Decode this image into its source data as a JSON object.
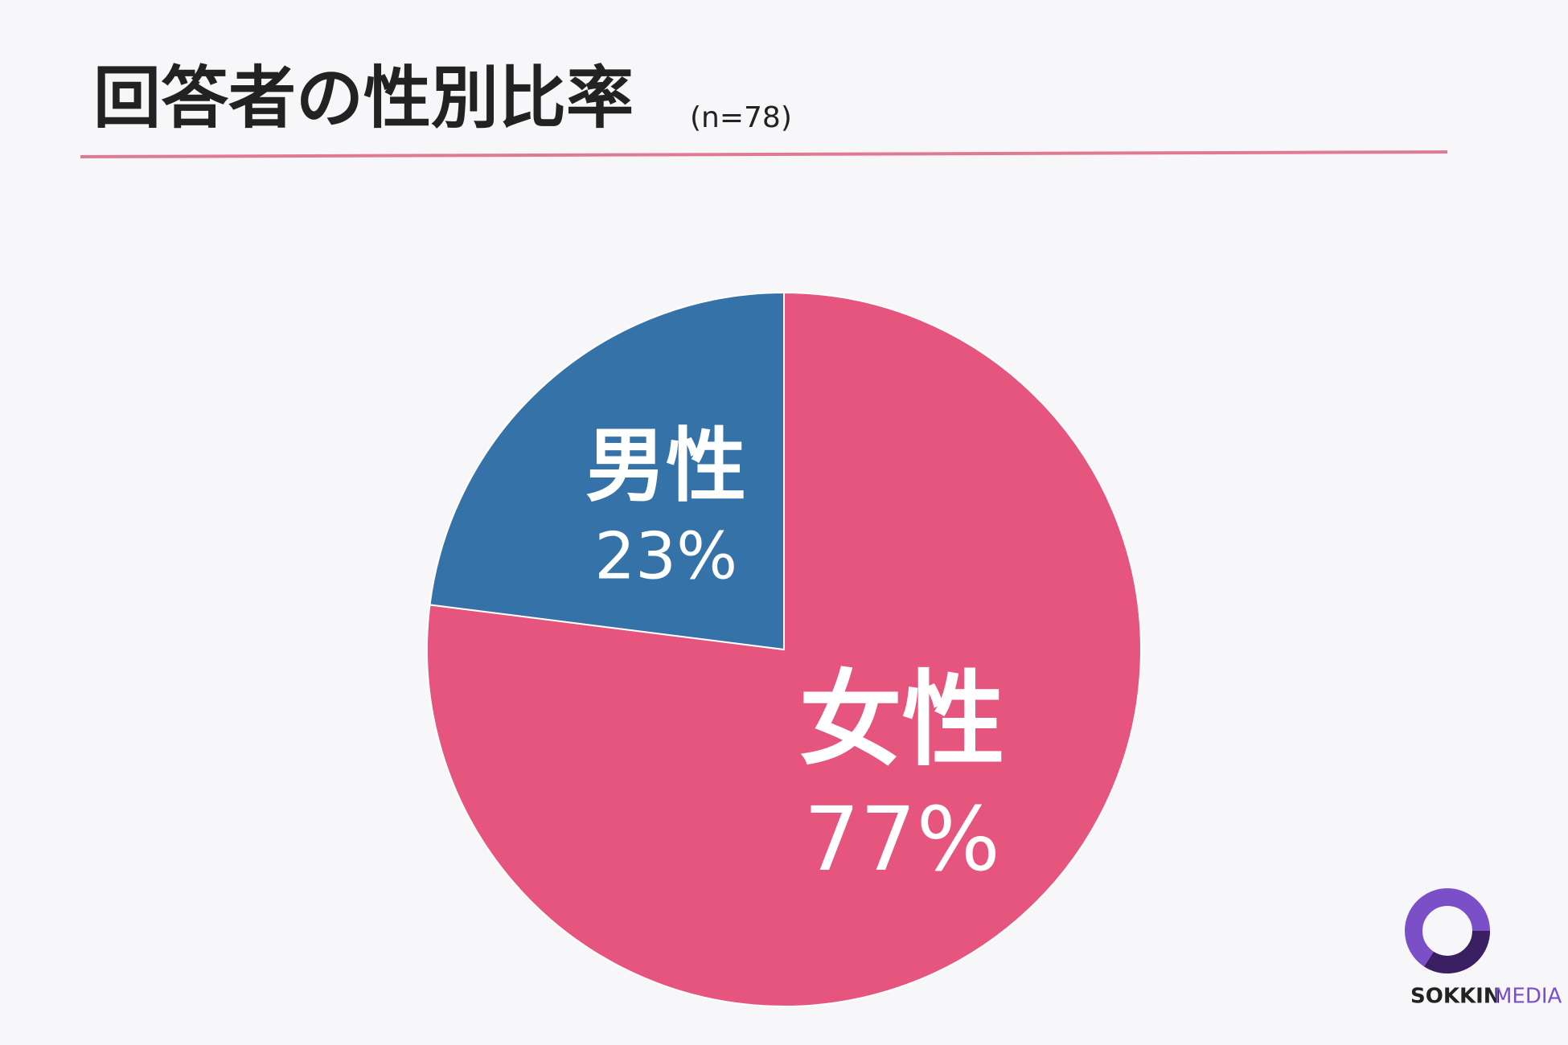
{
  "chart_data": {
    "type": "pie",
    "title": "回答者の性別比率",
    "subtitle": "(n=78)",
    "categories": [
      "女性",
      "男性"
    ],
    "values": [
      77,
      23
    ],
    "value_labels": [
      "77%",
      "23%"
    ],
    "colors": [
      "#e5557d",
      "#3572a8"
    ]
  },
  "logo": {
    "text": "SOKKIN",
    "text2": "MEDIA"
  }
}
